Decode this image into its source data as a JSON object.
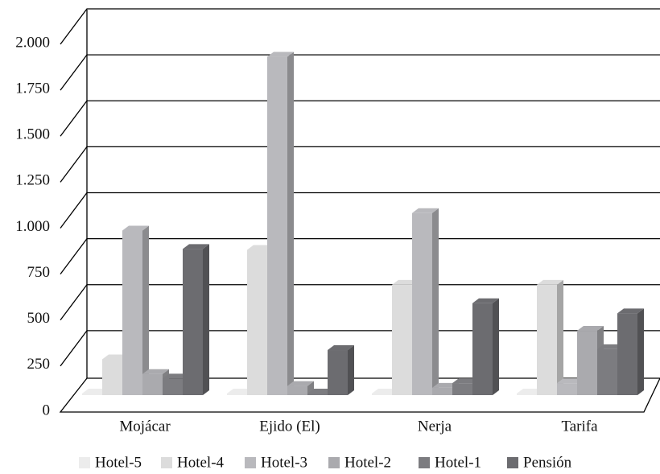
{
  "chart_data": {
    "type": "bar3d",
    "categories": [
      "Mojácar",
      "Ejido (El)",
      "Nerja",
      "Tarifa"
    ],
    "series": [
      {
        "name": "Hotel-5",
        "color": "#ececec",
        "values": [
          0,
          0,
          0,
          0
        ]
      },
      {
        "name": "Hotel-4",
        "color": "#dcdcdc",
        "values": [
          195,
          790,
          600,
          600
        ]
      },
      {
        "name": "Hotel-3",
        "color": "#b9b9bd",
        "values": [
          895,
          1840,
          990,
          65
        ]
      },
      {
        "name": "Hotel-2",
        "color": "#aaaaae",
        "values": [
          115,
          50,
          40,
          350
        ]
      },
      {
        "name": "Hotel-1",
        "color": "#7c7c80",
        "values": [
          90,
          5,
          65,
          250
        ]
      },
      {
        "name": "Pensión",
        "color": "#6c6c70",
        "values": [
          795,
          245,
          500,
          445
        ]
      }
    ],
    "ylim": [
      0,
      2000
    ],
    "yticks": [
      0,
      250,
      500,
      750,
      {
        "value": 1000,
        "label": "1.000"
      },
      {
        "value": 1250,
        "label": "1.250"
      },
      {
        "value": 1500,
        "label": "1.500"
      },
      {
        "value": 1750,
        "label": "1.750"
      },
      {
        "value": 2000,
        "label": "2.000"
      }
    ],
    "grid": true
  }
}
